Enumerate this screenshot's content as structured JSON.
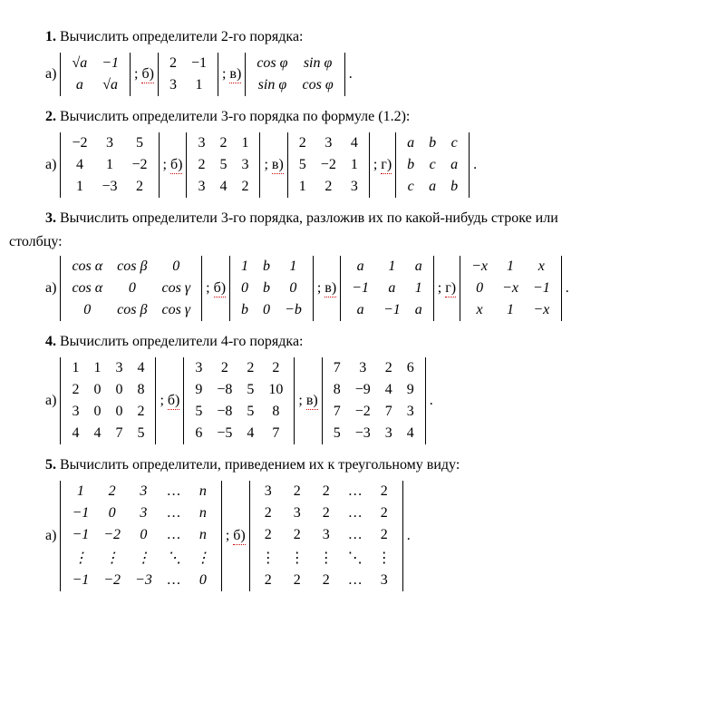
{
  "p1": {
    "heading_num": "1.",
    "heading_text": " Вычислить определители 2-го порядка:",
    "a_label": "а)",
    "b_label": "б)",
    "v_label": "в)",
    "sep": ";  ",
    "end": ".",
    "matA": [
      [
        "√a",
        "−1"
      ],
      [
        "a",
        "√a"
      ]
    ],
    "matB": [
      [
        "2",
        "−1"
      ],
      [
        "3",
        "1"
      ]
    ],
    "matV": [
      [
        "cos φ",
        "sin φ"
      ],
      [
        "sin φ",
        "cos φ"
      ]
    ]
  },
  "p2": {
    "heading_num": "2.",
    "heading_text": " Вычислить определители 3-го порядка по формуле (1.2):",
    "a_label": "а)",
    "b_label": "б)",
    "v_label": "в)",
    "g_label": "г)",
    "sep": ";  ",
    "end": ".",
    "matA": [
      [
        "−2",
        "3",
        "5"
      ],
      [
        "4",
        "1",
        "−2"
      ],
      [
        "1",
        "−3",
        "2"
      ]
    ],
    "matB": [
      [
        "3",
        "2",
        "1"
      ],
      [
        "2",
        "5",
        "3"
      ],
      [
        "3",
        "4",
        "2"
      ]
    ],
    "matV": [
      [
        "2",
        "3",
        "4"
      ],
      [
        "5",
        "−2",
        "1"
      ],
      [
        "1",
        "2",
        "3"
      ]
    ],
    "matG": [
      [
        "a",
        "b",
        "c"
      ],
      [
        "b",
        "c",
        "a"
      ],
      [
        "c",
        "a",
        "b"
      ]
    ]
  },
  "p3": {
    "heading_num": "3.",
    "heading_text": " Вычислить определители 3-го порядка, разложив их по какой-нибудь строке или столбцу:",
    "heading_line1": " Вычислить определители 3-го порядка, разложив их по какой-нибудь строке или",
    "heading_line2": "столбцу:",
    "a_label": "а)",
    "b_label": "б)",
    "v_label": "в)",
    "g_label": "г)",
    "sep": ";  ",
    "end": ".",
    "matA": [
      [
        "cos α",
        "cos β",
        "0"
      ],
      [
        "cos α",
        "0",
        "cos γ"
      ],
      [
        "0",
        "cos β",
        "cos γ"
      ]
    ],
    "matB": [
      [
        "1",
        "b",
        "1"
      ],
      [
        "0",
        "b",
        "0"
      ],
      [
        "b",
        "0",
        "−b"
      ]
    ],
    "matV": [
      [
        "a",
        "1",
        "a"
      ],
      [
        "−1",
        "a",
        "1"
      ],
      [
        "a",
        "−1",
        "a"
      ]
    ],
    "matG": [
      [
        "−x",
        "1",
        "x"
      ],
      [
        "0",
        "−x",
        "−1"
      ],
      [
        "x",
        "1",
        "−x"
      ]
    ]
  },
  "p4": {
    "heading_num": "4.",
    "heading_text": " Вычислить определители 4-го порядка:",
    "a_label": "а)",
    "b_label": "б)",
    "v_label": "в)",
    "sep": ";  ",
    "end": ".",
    "matA": [
      [
        "1",
        "1",
        "3",
        "4"
      ],
      [
        "2",
        "0",
        "0",
        "8"
      ],
      [
        "3",
        "0",
        "0",
        "2"
      ],
      [
        "4",
        "4",
        "7",
        "5"
      ]
    ],
    "matB": [
      [
        "3",
        "2",
        "2",
        "2"
      ],
      [
        "9",
        "−8",
        "5",
        "10"
      ],
      [
        "5",
        "−8",
        "5",
        "8"
      ],
      [
        "6",
        "−5",
        "4",
        "7"
      ]
    ],
    "matV": [
      [
        "7",
        "3",
        "2",
        "6"
      ],
      [
        "8",
        "−9",
        "4",
        "9"
      ],
      [
        "7",
        "−2",
        "7",
        "3"
      ],
      [
        "5",
        "−3",
        "3",
        "4"
      ]
    ]
  },
  "p5": {
    "heading_num": "5.",
    "heading_text": " Вычислить определители, приведением их к треугольному виду:",
    "a_label": "а)",
    "b_label": "б)",
    "sep": ";  ",
    "end": ".",
    "matA": [
      [
        "1",
        "2",
        "3",
        "…",
        "n"
      ],
      [
        "−1",
        "0",
        "3",
        "…",
        "n"
      ],
      [
        "−1",
        "−2",
        "0",
        "…",
        "n"
      ],
      [
        "⋮",
        "⋮",
        "⋮",
        "⋱",
        "⋮"
      ],
      [
        "−1",
        "−2",
        "−3",
        "…",
        "0"
      ]
    ],
    "matB": [
      [
        "3",
        "2",
        "2",
        "…",
        "2"
      ],
      [
        "2",
        "3",
        "2",
        "…",
        "2"
      ],
      [
        "2",
        "2",
        "3",
        "…",
        "2"
      ],
      [
        "⋮",
        "⋮",
        "⋮",
        "⋱",
        "⋮"
      ],
      [
        "2",
        "2",
        "2",
        "…",
        "3"
      ]
    ]
  }
}
